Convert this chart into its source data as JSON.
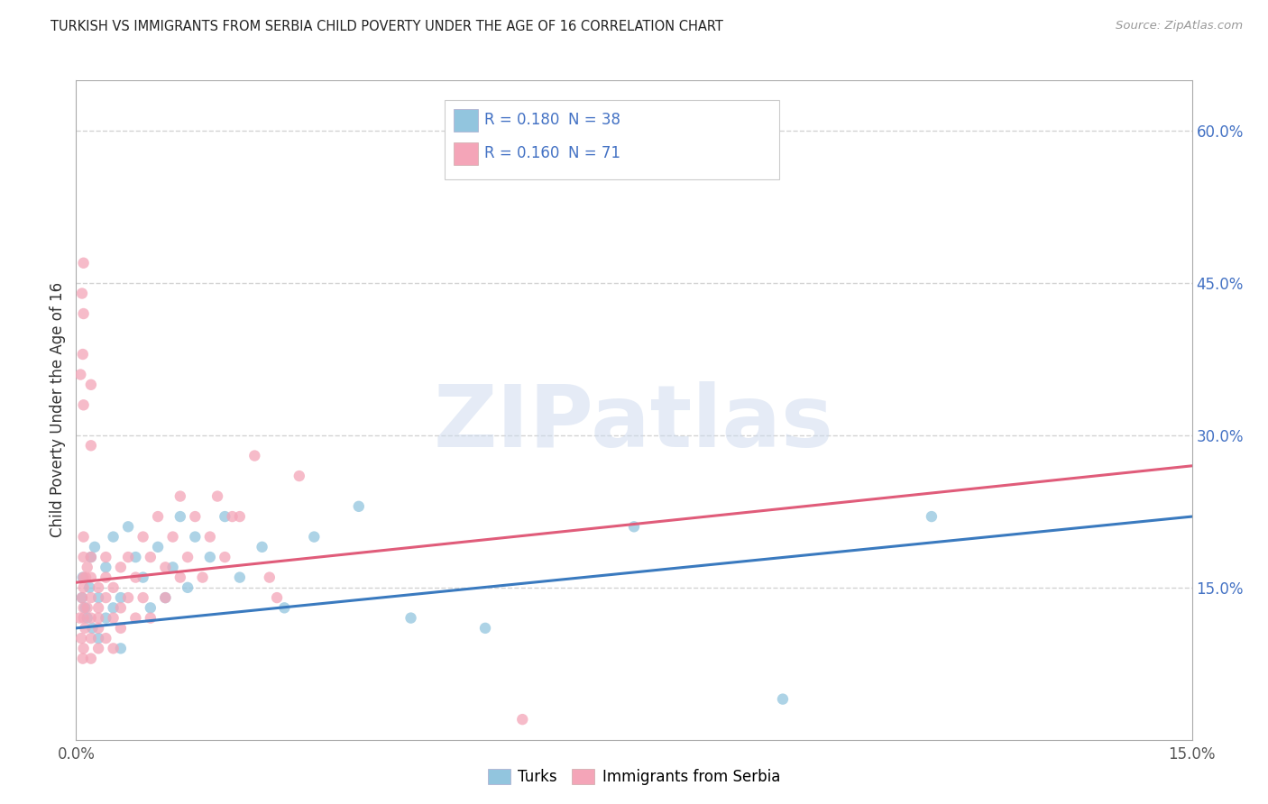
{
  "title": "TURKISH VS IMMIGRANTS FROM SERBIA CHILD POVERTY UNDER THE AGE OF 16 CORRELATION CHART",
  "source": "Source: ZipAtlas.com",
  "ylabel": "Child Poverty Under the Age of 16",
  "xlim": [
    0.0,
    0.15
  ],
  "ylim": [
    0.0,
    0.65
  ],
  "yticks_right": [
    0.15,
    0.3,
    0.45,
    0.6
  ],
  "ytick_labels_right": [
    "15.0%",
    "30.0%",
    "45.0%",
    "60.0%"
  ],
  "blue_color": "#92c5de",
  "pink_color": "#f4a5b8",
  "blue_line_color": "#3a7abf",
  "pink_line_color": "#e05c7a",
  "blue_legend_color": "#4472c4",
  "watermark_color": "#d0dff0",
  "watermark": "ZIPatlas",
  "background_color": "#ffffff",
  "grid_color": "#c8c8c8",
  "blue_R": "0.180",
  "blue_N": "38",
  "pink_R": "0.160",
  "pink_N": "71",
  "turks_x": [
    0.0008,
    0.0012,
    0.0015,
    0.0009,
    0.0018,
    0.002,
    0.0022,
    0.0025,
    0.003,
    0.003,
    0.004,
    0.004,
    0.005,
    0.005,
    0.006,
    0.006,
    0.007,
    0.008,
    0.009,
    0.01,
    0.011,
    0.012,
    0.013,
    0.014,
    0.015,
    0.016,
    0.018,
    0.02,
    0.022,
    0.025,
    0.028,
    0.032,
    0.038,
    0.045,
    0.055,
    0.075,
    0.095,
    0.115
  ],
  "turks_y": [
    0.14,
    0.13,
    0.12,
    0.16,
    0.15,
    0.18,
    0.11,
    0.19,
    0.14,
    0.1,
    0.12,
    0.17,
    0.13,
    0.2,
    0.14,
    0.09,
    0.21,
    0.18,
    0.16,
    0.13,
    0.19,
    0.14,
    0.17,
    0.22,
    0.15,
    0.2,
    0.18,
    0.22,
    0.16,
    0.19,
    0.13,
    0.2,
    0.23,
    0.12,
    0.11,
    0.21,
    0.04,
    0.22
  ],
  "serbia_x": [
    0.0005,
    0.0007,
    0.0008,
    0.0009,
    0.001,
    0.001,
    0.001,
    0.001,
    0.001,
    0.001,
    0.001,
    0.0012,
    0.0013,
    0.0015,
    0.0015,
    0.002,
    0.002,
    0.002,
    0.002,
    0.002,
    0.002,
    0.003,
    0.003,
    0.003,
    0.003,
    0.003,
    0.004,
    0.004,
    0.004,
    0.004,
    0.005,
    0.005,
    0.005,
    0.006,
    0.006,
    0.006,
    0.007,
    0.007,
    0.008,
    0.008,
    0.009,
    0.009,
    0.01,
    0.01,
    0.011,
    0.012,
    0.012,
    0.013,
    0.014,
    0.014,
    0.015,
    0.016,
    0.017,
    0.018,
    0.019,
    0.02,
    0.021,
    0.022,
    0.024,
    0.026,
    0.027,
    0.03,
    0.001,
    0.0008,
    0.0006,
    0.0009,
    0.001,
    0.001,
    0.002,
    0.002,
    0.06
  ],
  "serbia_y": [
    0.12,
    0.1,
    0.14,
    0.08,
    0.16,
    0.13,
    0.18,
    0.2,
    0.09,
    0.15,
    0.12,
    0.11,
    0.16,
    0.13,
    0.17,
    0.1,
    0.14,
    0.12,
    0.08,
    0.16,
    0.18,
    0.13,
    0.11,
    0.15,
    0.09,
    0.12,
    0.14,
    0.18,
    0.1,
    0.16,
    0.12,
    0.15,
    0.09,
    0.17,
    0.13,
    0.11,
    0.14,
    0.18,
    0.16,
    0.12,
    0.2,
    0.14,
    0.18,
    0.12,
    0.22,
    0.17,
    0.14,
    0.2,
    0.24,
    0.16,
    0.18,
    0.22,
    0.16,
    0.2,
    0.24,
    0.18,
    0.22,
    0.22,
    0.28,
    0.16,
    0.14,
    0.26,
    0.42,
    0.44,
    0.36,
    0.38,
    0.47,
    0.33,
    0.35,
    0.29,
    0.02
  ]
}
